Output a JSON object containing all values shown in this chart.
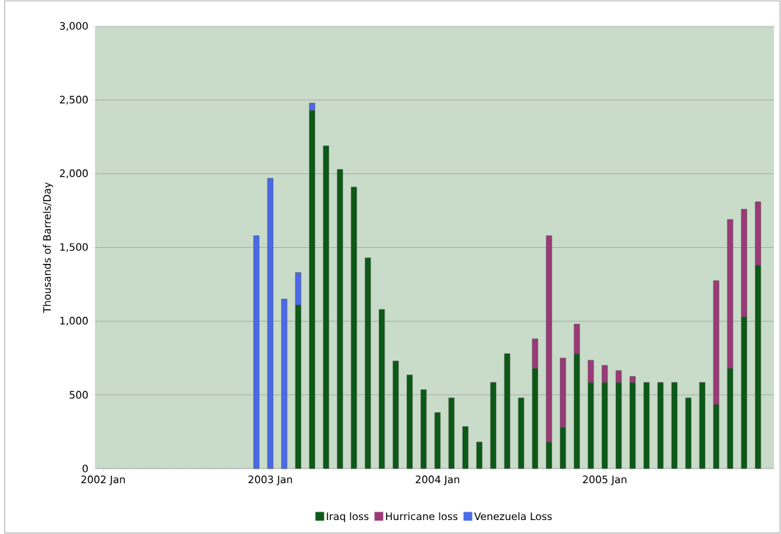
{
  "chart_data": {
    "type": "bar",
    "stacked": true,
    "ylabel": "Thousands of Barrels/Day",
    "categories": [
      "2002 Jan",
      null,
      null,
      null,
      null,
      null,
      null,
      null,
      null,
      null,
      null,
      null,
      "2003 Jan",
      null,
      null,
      null,
      null,
      null,
      null,
      null,
      null,
      null,
      null,
      null,
      "2004 Jan",
      null,
      null,
      null,
      null,
      null,
      null,
      null,
      null,
      null,
      null,
      null,
      "2005 Jan",
      null,
      null,
      null,
      null,
      null,
      null,
      null,
      null,
      null,
      null,
      null
    ],
    "series": [
      {
        "name": "Iraq loss",
        "color": "#0b5a17",
        "values": [
          null,
          null,
          null,
          null,
          null,
          null,
          null,
          null,
          null,
          null,
          null,
          null,
          null,
          null,
          1110,
          2430,
          2190,
          2030,
          1910,
          1430,
          1080,
          730,
          635,
          535,
          380,
          480,
          285,
          180,
          585,
          780,
          480,
          680,
          180,
          280,
          780,
          585,
          585,
          585,
          585,
          585,
          585,
          585,
          480,
          585,
          435,
          680,
          1030,
          1380
        ]
      },
      {
        "name": "Hurricane loss",
        "color": "#9b3a78",
        "values": [
          null,
          null,
          null,
          null,
          null,
          null,
          null,
          null,
          null,
          null,
          null,
          null,
          null,
          null,
          null,
          null,
          null,
          null,
          null,
          null,
          null,
          null,
          null,
          null,
          null,
          null,
          null,
          null,
          null,
          null,
          null,
          200,
          1400,
          470,
          200,
          150,
          115,
          80,
          40,
          null,
          null,
          null,
          null,
          null,
          840,
          1010,
          730,
          430
        ]
      },
      {
        "name": "Venezuela Loss",
        "color": "#4a6ae8",
        "values": [
          null,
          null,
          null,
          null,
          null,
          null,
          null,
          null,
          null,
          null,
          null,
          1580,
          1970,
          1150,
          220,
          50,
          null,
          null,
          null,
          null,
          null,
          null,
          null,
          null,
          null,
          null,
          null,
          null,
          null,
          null,
          null,
          null,
          null,
          null,
          null,
          null,
          null,
          null,
          null,
          null,
          null,
          null,
          null,
          null,
          null,
          null,
          null,
          null
        ]
      }
    ],
    "ylim": [
      0,
      3000
    ],
    "yticks": [
      0,
      500,
      {
        "value": 1000,
        "label": "1,000"
      },
      {
        "value": 1500,
        "label": "1,500"
      },
      {
        "value": 2000,
        "label": "2,000"
      },
      {
        "value": 2500,
        "label": "2,500"
      },
      {
        "value": 3000,
        "label": "3,000"
      }
    ],
    "grid": "y",
    "legend": "bottom"
  }
}
